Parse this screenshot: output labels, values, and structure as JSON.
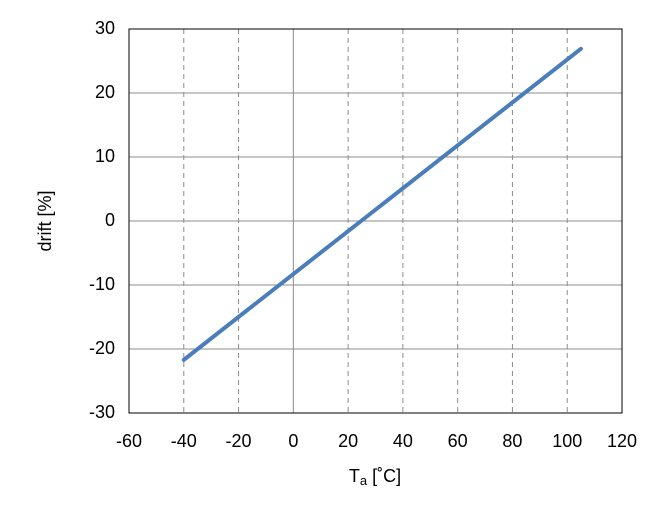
{
  "chart_data": {
    "type": "line",
    "xlabel": {
      "main": "T",
      "sub": "a",
      "unit": " [˚C]"
    },
    "ylabel": "drift [%]",
    "x": [
      -40,
      105
    ],
    "series": [
      {
        "color": "#4a7ebb",
        "values": [
          -21.7,
          26.9
        ]
      }
    ],
    "xlim": [
      -60,
      120
    ],
    "xticks": [
      -60,
      -40,
      -20,
      0,
      20,
      40,
      60,
      80,
      100,
      120
    ],
    "ylim": [
      -30,
      30
    ],
    "yticks": [
      -30,
      -20,
      -10,
      0,
      10,
      20,
      30
    ],
    "grid": true
  }
}
